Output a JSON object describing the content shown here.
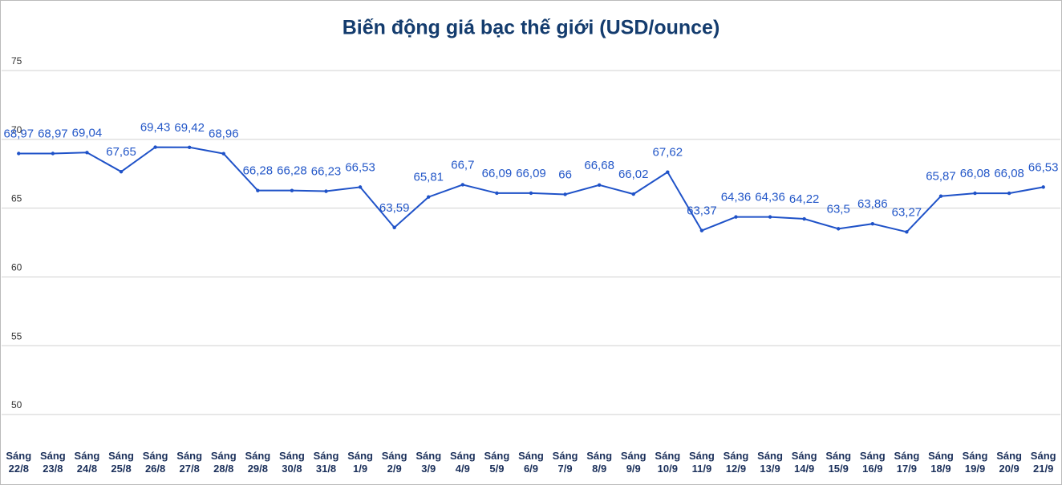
{
  "chart_data": {
    "type": "line",
    "title": "Biến động giá bạc thế giới (USD/ounce)",
    "categories": [
      [
        "Sáng",
        "22/8"
      ],
      [
        "Sáng",
        "23/8"
      ],
      [
        "Sáng",
        "24/8"
      ],
      [
        "Sáng",
        "25/8"
      ],
      [
        "Sáng",
        "26/8"
      ],
      [
        "Sáng",
        "27/8"
      ],
      [
        "Sáng",
        "28/8"
      ],
      [
        "Sáng",
        "29/8"
      ],
      [
        "Sáng",
        "30/8"
      ],
      [
        "Sáng",
        "31/8"
      ],
      [
        "Sáng",
        "1/9"
      ],
      [
        "Sáng",
        "2/9"
      ],
      [
        "Sáng",
        "3/9"
      ],
      [
        "Sáng",
        "4/9"
      ],
      [
        "Sáng",
        "5/9"
      ],
      [
        "Sáng",
        "6/9"
      ],
      [
        "Sáng",
        "7/9"
      ],
      [
        "Sáng",
        "8/9"
      ],
      [
        "Sáng",
        "9/9"
      ],
      [
        "Sáng",
        "10/9"
      ],
      [
        "Sáng",
        "11/9"
      ],
      [
        "Sáng",
        "12/9"
      ],
      [
        "Sáng",
        "13/9"
      ],
      [
        "Sáng",
        "14/9"
      ],
      [
        "Sáng",
        "15/9"
      ],
      [
        "Sáng",
        "16/9"
      ],
      [
        "Sáng",
        "17/9"
      ],
      [
        "Sáng",
        "18/9"
      ],
      [
        "Sáng",
        "19/9"
      ],
      [
        "Sáng",
        "20/9"
      ],
      [
        "Sáng",
        "21/9"
      ]
    ],
    "values": [
      68.97,
      68.97,
      69.04,
      67.65,
      69.43,
      69.42,
      68.96,
      66.28,
      66.28,
      66.23,
      66.53,
      63.59,
      65.81,
      66.7,
      66.09,
      66.09,
      66,
      66.68,
      66.02,
      67.62,
      63.37,
      64.36,
      64.36,
      64.22,
      63.5,
      63.86,
      63.27,
      65.87,
      66.08,
      66.08,
      66.53
    ],
    "value_labels": [
      "68,97",
      "68,97",
      "69,04",
      "67,65",
      "69,43",
      "69,42",
      "68,96",
      "66,28",
      "66,28",
      "66,23",
      "66,53",
      "63,59",
      "65,81",
      "66,7",
      "66,09",
      "66,09",
      "66",
      "66,68",
      "66,02",
      "67,62",
      "63,37",
      "64,36",
      "64,36",
      "64,22",
      "63,5",
      "63,86",
      "63,27",
      "65,87",
      "66,08",
      "66,08",
      "66,53"
    ],
    "color": "#1f52c8",
    "ylim": [
      47.5,
      75
    ],
    "yticks": [
      50,
      55,
      60,
      65,
      70,
      75
    ],
    "grid": true
  }
}
